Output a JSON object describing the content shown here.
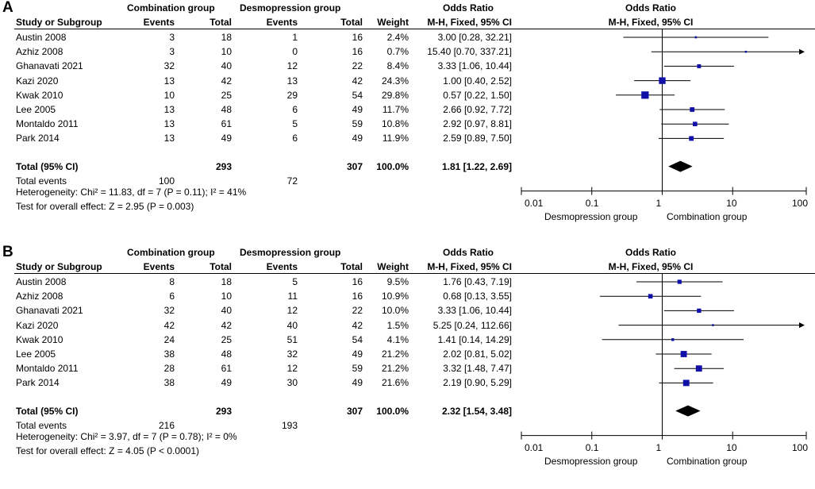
{
  "chart_data": [
    {
      "panel_label": "A",
      "type": "forest",
      "group_headers": {
        "experimental": "Combination group",
        "control": "Desmopression group",
        "effect": "Odds Ratio",
        "plot": "Odds Ratio"
      },
      "column_headers": {
        "study": "Study or Subgroup",
        "events_exp": "Events",
        "total_exp": "Total",
        "events_ctrl": "Events",
        "total_ctrl": "Total",
        "weight": "Weight",
        "method": "M-H, Fixed, 95% CI",
        "plot_method": "M-H, Fixed, 95% CI"
      },
      "studies": [
        {
          "study": "Austin 2008",
          "events_exp": "3",
          "total_exp": "18",
          "events_ctrl": "1",
          "total_ctrl": "16",
          "weight": "2.4%",
          "ci_text": "3.00 [0.28, 32.21]",
          "or": 3.0,
          "lo": 0.28,
          "hi": 32.21,
          "w": 2.4
        },
        {
          "study": "Azhiz 2008",
          "events_exp": "3",
          "total_exp": "10",
          "events_ctrl": "0",
          "total_ctrl": "16",
          "weight": "0.7%",
          "ci_text": "15.40 [0.70, 337.21]",
          "or": 15.4,
          "lo": 0.7,
          "hi": 337.21,
          "w": 0.7
        },
        {
          "study": "Ghanavati 2021",
          "events_exp": "32",
          "total_exp": "40",
          "events_ctrl": "12",
          "total_ctrl": "22",
          "weight": "8.4%",
          "ci_text": "3.33 [1.06, 10.44]",
          "or": 3.33,
          "lo": 1.06,
          "hi": 10.44,
          "w": 8.4
        },
        {
          "study": "Kazi 2020",
          "events_exp": "13",
          "total_exp": "42",
          "events_ctrl": "13",
          "total_ctrl": "42",
          "weight": "24.3%",
          "ci_text": "1.00 [0.40, 2.52]",
          "or": 1.0,
          "lo": 0.4,
          "hi": 2.52,
          "w": 24.3
        },
        {
          "study": "Kwak 2010",
          "events_exp": "10",
          "total_exp": "25",
          "events_ctrl": "29",
          "total_ctrl": "54",
          "weight": "29.8%",
          "ci_text": "0.57 [0.22, 1.50]",
          "or": 0.57,
          "lo": 0.22,
          "hi": 1.5,
          "w": 29.8
        },
        {
          "study": "Lee 2005",
          "events_exp": "13",
          "total_exp": "48",
          "events_ctrl": "6",
          "total_ctrl": "49",
          "weight": "11.7%",
          "ci_text": "2.66 [0.92, 7.72]",
          "or": 2.66,
          "lo": 0.92,
          "hi": 7.72,
          "w": 11.7
        },
        {
          "study": "Montaldo 2011",
          "events_exp": "13",
          "total_exp": "61",
          "events_ctrl": "5",
          "total_ctrl": "59",
          "weight": "10.8%",
          "ci_text": "2.92 [0.97, 8.81]",
          "or": 2.92,
          "lo": 0.97,
          "hi": 8.81,
          "w": 10.8
        },
        {
          "study": "Park 2014",
          "events_exp": "13",
          "total_exp": "49",
          "events_ctrl": "6",
          "total_ctrl": "49",
          "weight": "11.9%",
          "ci_text": "2.59 [0.89, 7.50]",
          "or": 2.59,
          "lo": 0.89,
          "hi": 7.5,
          "w": 11.9
        }
      ],
      "total": {
        "label": "Total (95% CI)",
        "total_exp": "293",
        "total_ctrl": "307",
        "weight": "100.0%",
        "ci_text": "1.81 [1.22, 2.69]",
        "or": 1.81,
        "lo": 1.22,
        "hi": 2.69
      },
      "total_events": {
        "label": "Total events",
        "exp": "100",
        "ctrl": "72"
      },
      "heterogeneity": "Heterogeneity: Chi² = 11.83, df = 7 (P = 0.11); I² = 41%",
      "overall_effect": "Test for overall effect: Z = 2.95 (P = 0.003)",
      "x_axis": {
        "scale": "log",
        "range": [
          0.01,
          100
        ],
        "ticks": [
          "0.01",
          "0.1",
          "1",
          "10",
          "100"
        ],
        "tick_values": [
          0.01,
          0.1,
          1,
          10,
          100
        ],
        "favours_left": "Desmopression group",
        "favours_right": "Combination group"
      }
    },
    {
      "panel_label": "B",
      "type": "forest",
      "group_headers": {
        "experimental": "Combination group",
        "control": "Desmopression group",
        "effect": "Odds Ratio",
        "plot": "Odds Ratio"
      },
      "column_headers": {
        "study": "Study or Subgroup",
        "events_exp": "Events",
        "total_exp": "Total",
        "events_ctrl": "Events",
        "total_ctrl": "Total",
        "weight": "Weight",
        "method": "M-H, Fixed, 95% CI",
        "plot_method": "M-H, Fixed, 95% CI"
      },
      "studies": [
        {
          "study": "Austin 2008",
          "events_exp": "8",
          "total_exp": "18",
          "events_ctrl": "5",
          "total_ctrl": "16",
          "weight": "9.5%",
          "ci_text": "1.76 [0.43, 7.19]",
          "or": 1.76,
          "lo": 0.43,
          "hi": 7.19,
          "w": 9.5
        },
        {
          "study": "Azhiz 2008",
          "events_exp": "6",
          "total_exp": "10",
          "events_ctrl": "11",
          "total_ctrl": "16",
          "weight": "10.9%",
          "ci_text": "0.68 [0.13, 3.55]",
          "or": 0.68,
          "lo": 0.13,
          "hi": 3.55,
          "w": 10.9
        },
        {
          "study": "Ghanavati 2021",
          "events_exp": "32",
          "total_exp": "40",
          "events_ctrl": "12",
          "total_ctrl": "22",
          "weight": "10.0%",
          "ci_text": "3.33 [1.06, 10.44]",
          "or": 3.33,
          "lo": 1.06,
          "hi": 10.44,
          "w": 10.0
        },
        {
          "study": "Kazi 2020",
          "events_exp": "42",
          "total_exp": "42",
          "events_ctrl": "40",
          "total_ctrl": "42",
          "weight": "1.5%",
          "ci_text": "5.25 [0.24, 112.66]",
          "or": 5.25,
          "lo": 0.24,
          "hi": 112.66,
          "w": 1.5
        },
        {
          "study": "Kwak 2010",
          "events_exp": "24",
          "total_exp": "25",
          "events_ctrl": "51",
          "total_ctrl": "54",
          "weight": "4.1%",
          "ci_text": "1.41 [0.14, 14.29]",
          "or": 1.41,
          "lo": 0.14,
          "hi": 14.29,
          "w": 4.1
        },
        {
          "study": "Lee 2005",
          "events_exp": "38",
          "total_exp": "48",
          "events_ctrl": "32",
          "total_ctrl": "49",
          "weight": "21.2%",
          "ci_text": "2.02 [0.81, 5.02]",
          "or": 2.02,
          "lo": 0.81,
          "hi": 5.02,
          "w": 21.2
        },
        {
          "study": "Montaldo 2011",
          "events_exp": "28",
          "total_exp": "61",
          "events_ctrl": "12",
          "total_ctrl": "59",
          "weight": "21.2%",
          "ci_text": "3.32 [1.48, 7.47]",
          "or": 3.32,
          "lo": 1.48,
          "hi": 7.47,
          "w": 21.2
        },
        {
          "study": "Park 2014",
          "events_exp": "38",
          "total_exp": "49",
          "events_ctrl": "30",
          "total_ctrl": "49",
          "weight": "21.6%",
          "ci_text": "2.19 [0.90, 5.29]",
          "or": 2.19,
          "lo": 0.9,
          "hi": 5.29,
          "w": 21.6
        }
      ],
      "total": {
        "label": "Total (95% CI)",
        "total_exp": "293",
        "total_ctrl": "307",
        "weight": "100.0%",
        "ci_text": "2.32 [1.54, 3.48]",
        "or": 2.32,
        "lo": 1.54,
        "hi": 3.48
      },
      "total_events": {
        "label": "Total events",
        "exp": "216",
        "ctrl": "193"
      },
      "heterogeneity": "Heterogeneity: Chi² = 3.97, df = 7 (P = 0.78); I² = 0%",
      "overall_effect": "Test for overall effect: Z = 4.05 (P < 0.0001)",
      "x_axis": {
        "scale": "log",
        "range": [
          0.01,
          100
        ],
        "ticks": [
          "0.01",
          "0.1",
          "1",
          "10",
          "100"
        ],
        "tick_values": [
          0.01,
          0.1,
          1,
          10,
          100
        ],
        "favours_left": "Desmopression group",
        "favours_right": "Combination group"
      }
    }
  ],
  "colors": {
    "square": "#1010a8",
    "diamond": "#000000",
    "text": "#000000"
  }
}
